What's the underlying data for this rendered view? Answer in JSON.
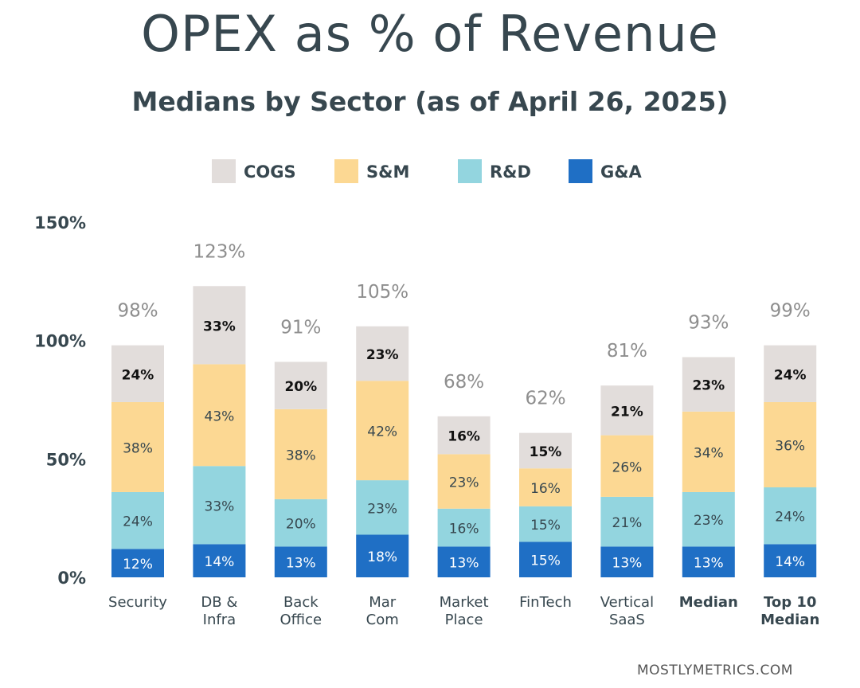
{
  "chart_data": {
    "type": "bar",
    "stacked": true,
    "title": "OPEX as % of Revenue",
    "subtitle": "Medians by Sector (as of April 26, 2025)",
    "categories": [
      [
        "Security"
      ],
      [
        "DB &",
        "Infra"
      ],
      [
        "Back",
        "Office"
      ],
      [
        "Mar",
        "Com"
      ],
      [
        "Market",
        "Place"
      ],
      [
        "FinTech"
      ],
      [
        "Vertical",
        "SaaS"
      ],
      [
        "Median"
      ],
      [
        "Top 10",
        "Median"
      ]
    ],
    "bold_categories": [
      7,
      8
    ],
    "series": [
      {
        "name": "G&A",
        "color": "#1f6fc5",
        "values": [
          12,
          14,
          13,
          18,
          13,
          15,
          13,
          13,
          14
        ]
      },
      {
        "name": "R&D",
        "color": "#93d5df",
        "values": [
          24,
          33,
          20,
          23,
          16,
          15,
          21,
          23,
          24
        ]
      },
      {
        "name": "S&M",
        "color": "#fcd893",
        "values": [
          38,
          43,
          38,
          42,
          23,
          16,
          26,
          34,
          36
        ]
      },
      {
        "name": "COGS",
        "color": "#e2dddb",
        "values": [
          24,
          33,
          20,
          23,
          16,
          15,
          21,
          23,
          24
        ]
      }
    ],
    "totals": [
      "98%",
      "123%",
      "91%",
      "105%",
      "68%",
      "62%",
      "81%",
      "93%",
      "99%"
    ],
    "legend_order": [
      "COGS",
      "S&M",
      "R&D",
      "G&A"
    ],
    "legend_position": "top",
    "ylim": [
      0,
      150
    ],
    "yticks": [
      0,
      50,
      100,
      150
    ],
    "ytick_labels": [
      "0%",
      "50%",
      "100%",
      "150%"
    ],
    "grid": false
  },
  "watermark": "MOSTLYMETRICS.COM"
}
